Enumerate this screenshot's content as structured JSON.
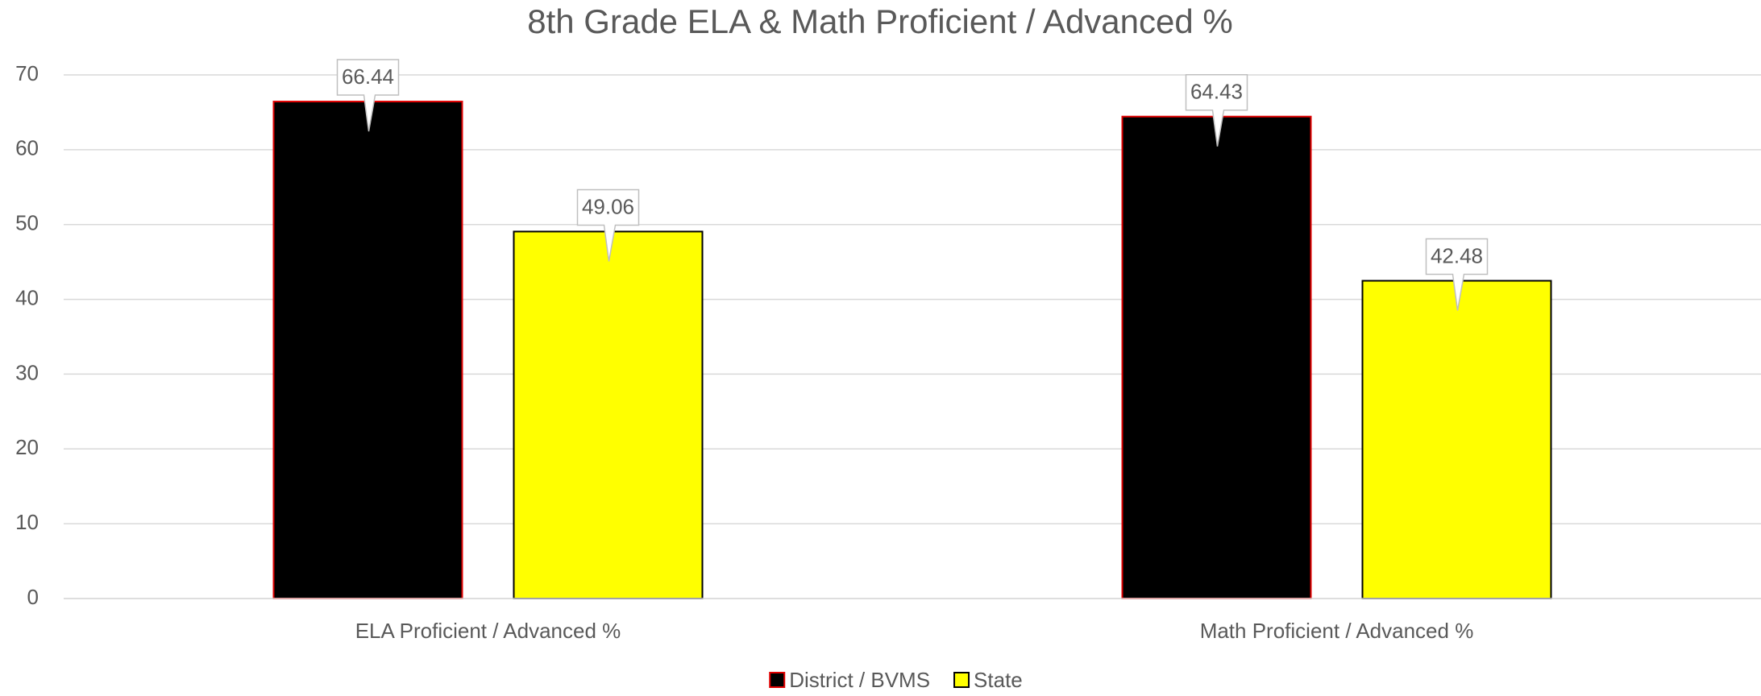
{
  "chart_data": {
    "type": "bar",
    "title": "8th Grade ELA & Math Proficient / Advanced %",
    "categories": [
      "ELA Proficient / Advanced %",
      "Math Proficient / Advanced %"
    ],
    "series": [
      {
        "name": "District / BVMS",
        "color": "#000000",
        "stroke": "#e00000",
        "values": [
          66.44,
          64.43
        ]
      },
      {
        "name": "State",
        "color": "#ffff00",
        "stroke": "#000000",
        "values": [
          49.06,
          42.48
        ]
      }
    ],
    "ylim": [
      0,
      70
    ],
    "yticks": [
      0,
      10,
      20,
      30,
      40,
      50,
      60,
      70
    ],
    "grid": true,
    "legend": "bottom"
  }
}
